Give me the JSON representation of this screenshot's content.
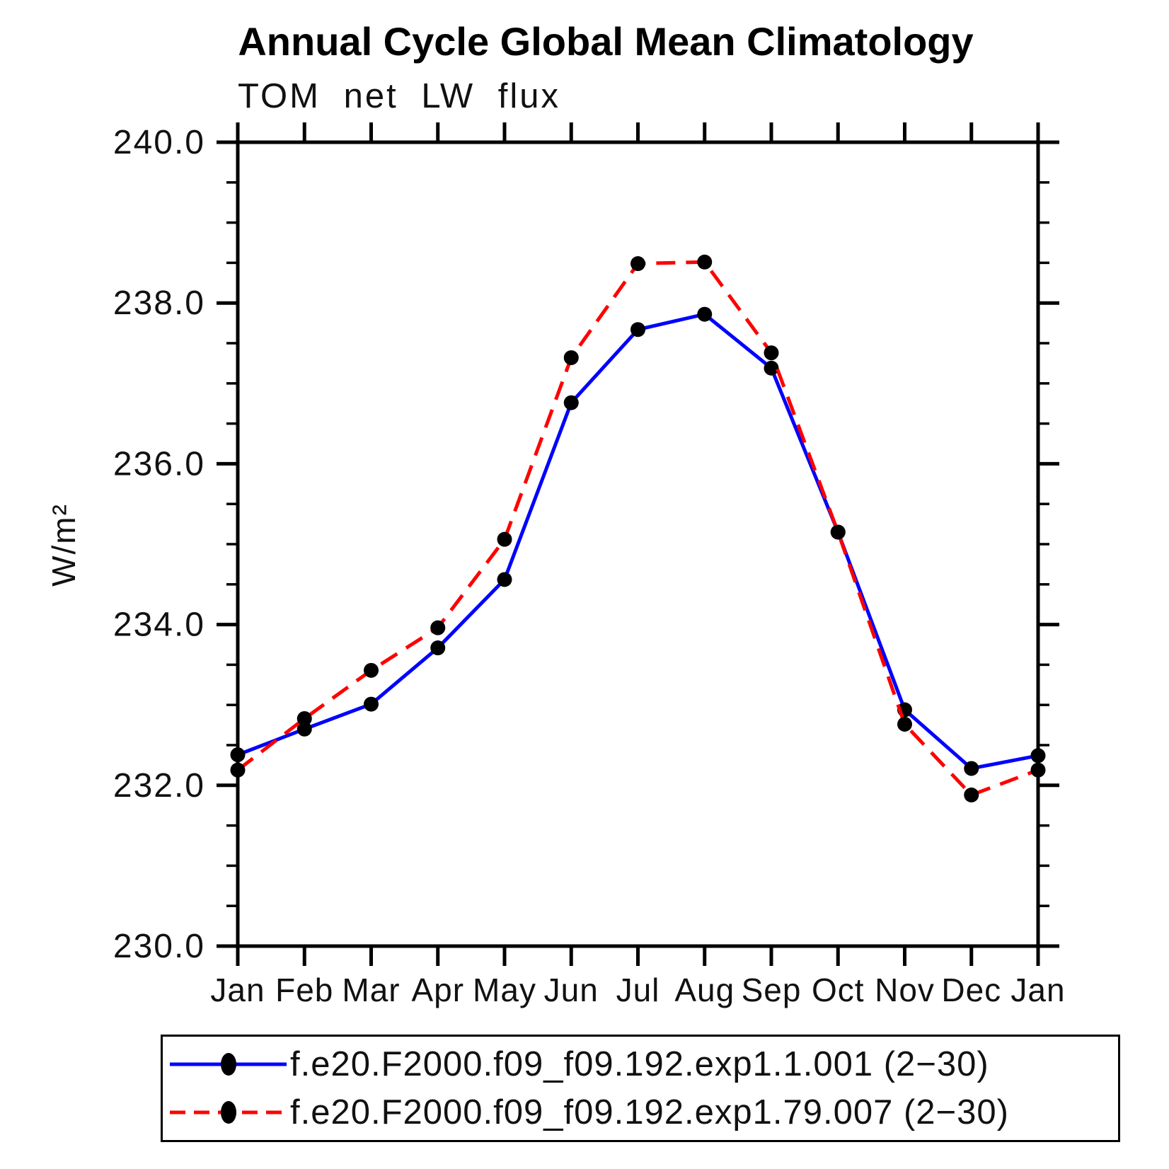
{
  "page": {
    "background": "#ffffff"
  },
  "chart_data": {
    "type": "line",
    "title": "Annual Cycle Global Mean Climatology",
    "subtitle": "TOM net LW flux",
    "ylabel": "W/m²",
    "xlabel": "",
    "x_categories": [
      "Jan",
      "Feb",
      "Mar",
      "Apr",
      "May",
      "Jun",
      "Jul",
      "Aug",
      "Sep",
      "Oct",
      "Nov",
      "Dec",
      "Jan"
    ],
    "ylim": [
      230.0,
      240.0
    ],
    "ytick_values": [
      230.0,
      232.0,
      234.0,
      236.0,
      238.0,
      240.0
    ],
    "ytick_labels": [
      "230.0",
      "232.0",
      "234.0",
      "236.0",
      "238.0",
      "240.0"
    ],
    "ytick_minor_step": 0.5,
    "grid": false,
    "legend_position": "bottom",
    "axis_color": "#000000",
    "marker_color": "#000000",
    "series": [
      {
        "name": "f.e20.F2000.f09_f09.192.exp1.1.001 (2−30)",
        "color": "#0000ff",
        "line_style": "solid",
        "marker": "filled-circle",
        "values": [
          232.38,
          232.7,
          233.01,
          233.71,
          234.56,
          236.76,
          237.67,
          237.86,
          237.19,
          235.15,
          232.94,
          232.21,
          232.37
        ]
      },
      {
        "name": "f.e20.F2000.f09_f09.192.exp1.79.007 (2−30)",
        "color": "#ff0000",
        "line_style": "dashed",
        "marker": "filled-circle",
        "values": [
          232.19,
          232.83,
          233.43,
          233.96,
          235.06,
          237.32,
          238.49,
          238.51,
          237.38,
          235.15,
          232.76,
          231.88,
          232.19
        ]
      }
    ]
  }
}
